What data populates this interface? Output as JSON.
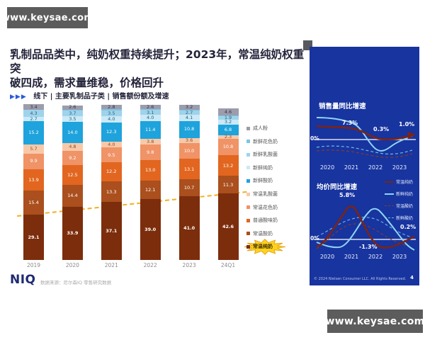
{
  "watermarks": {
    "top_left": "www.keysae.com",
    "bottom_right": "www.keysae.com"
  },
  "header": {
    "title_line1": "乳制品品类中，纯奶权重持续提升；2023年，常温纯奶权重突",
    "title_line2": "破四成，需求量维稳，价格回升",
    "kicker_arrows": "▶▶▶",
    "kicker_text": "线下 | 主要乳制品子类 | 销售额份额及增速"
  },
  "footer": {
    "logo": "NIQ",
    "source_note": "数据来源：尼尔森IQ 零售研究数据",
    "copyright": "© 2024 Nielsen Consumer LLC. All Rights Reserved.",
    "page_number": "4"
  },
  "chart_data": [
    {
      "type": "bar",
      "stacked": true,
      "unit": "%",
      "title": "线下 | 主要乳制品子类 | 销售额份额",
      "categories": [
        "2019",
        "2020",
        "2021",
        "2022",
        "2023",
        "24Q1"
      ],
      "series_bottom_to_top": [
        {
          "name": "常温纯奶",
          "color": "#7c2d0c",
          "text": "#ffffff",
          "bold": true,
          "values": [
            "29.1",
            "33.9",
            "37.1",
            "39.0",
            "41.0",
            "42.6"
          ]
        },
        {
          "name": "常温酸奶",
          "color": "#aa4f1d",
          "text": "#ffffff",
          "values": [
            "15.4",
            "14.4",
            "13.3",
            "12.1",
            "10.7",
            "11.3"
          ]
        },
        {
          "name": "普通酸味奶",
          "color": "#e2661f",
          "text": "#ffffff",
          "values": [
            "13.9",
            "12.5",
            "12.2",
            "13.0",
            "13.1",
            "13.2"
          ]
        },
        {
          "name": "常温花色奶",
          "color": "#f09366",
          "text": "#ffffff",
          "values": [
            "9.9",
            "9.2",
            "9.5",
            "9.8",
            "10.0",
            "10.8"
          ]
        },
        {
          "name": "常温乳酸菌",
          "color": "#f8c9a9",
          "text": "#8a4d22",
          "values": [
            "5.7",
            "4.8",
            "4.0",
            "3.8",
            "3.6",
            "2.3"
          ]
        },
        {
          "name": "新鲜酸奶",
          "color": "#1ea3dc",
          "text": "#ffffff",
          "values": [
            "15.2",
            "14.0",
            "12.3",
            "11.4",
            "10.8",
            "6.8"
          ]
        },
        {
          "name": "新鲜纯奶",
          "color": "#cbe9f6",
          "text": "#27607e",
          "values": [
            "2.7",
            "3.5",
            "4.0",
            "4.0",
            "4.1",
            "3.2"
          ]
        },
        {
          "name": "新鲜乳酸菌",
          "color": "#9ed3eb",
          "text": "#27607e",
          "values": [
            "4.3",
            "3.7",
            "3.5",
            "3.1",
            "2.7",
            "1.9"
          ]
        },
        {
          "name": "新鲜花色奶",
          "color": "#7cc4e4",
          "text": "#27607e",
          "hide_label": true,
          "values": [
            "0.4",
            "0.6",
            "0.8",
            "0.6",
            "0.5",
            "0.7"
          ]
        },
        {
          "name": "成人粉",
          "color": "#9c9cac",
          "text": "#34344a",
          "values": [
            "3.4",
            "2.6",
            "2.8",
            "2.6",
            "3.2",
            "4.6"
          ]
        }
      ],
      "highlight": {
        "series": "常温纯奶",
        "color": "#ffd21f"
      },
      "trend_line": {
        "color": "#f2b01e",
        "style": "dashed"
      }
    },
    {
      "type": "line",
      "title": "销售量同比增速",
      "x": [
        "2020",
        "2021",
        "2022",
        "2023"
      ],
      "zero_label": "0%",
      "series": [
        {
          "name": "常温纯奶",
          "style": "solid",
          "color": "#7b2416",
          "values": [
            8.5,
            7.3,
            0.3,
            1.0
          ]
        },
        {
          "name": "新鲜纯奶",
          "style": "solid",
          "color": "#8fd4f5",
          "values": [
            14,
            11,
            -6,
            0.8
          ]
        },
        {
          "name": "常温酸奶",
          "style": "dashed",
          "color": "#8b3a2a",
          "values": [
            -7,
            -7.5,
            -11,
            -9
          ]
        },
        {
          "name": "新鲜酸奶",
          "style": "dashed",
          "color": "#6fb9e8",
          "values": [
            -5,
            -5.5,
            -9,
            -7
          ]
        }
      ],
      "point_labels": [
        {
          "series": "常温纯奶",
          "x": "2021",
          "text": "7.3%"
        },
        {
          "series": "常温纯奶",
          "x": "2022",
          "text": "0.3%"
        },
        {
          "series": "常温纯奶",
          "x": "2023",
          "text": "1.0%"
        }
      ]
    },
    {
      "type": "line",
      "title": "均价同比增速",
      "x": [
        "2020",
        "2021",
        "2022",
        "2023"
      ],
      "zero_label": "0%",
      "legend": [
        "常温纯奶",
        "新鲜纯奶",
        "常温酸奶",
        "新鲜酸奶"
      ],
      "series": [
        {
          "name": "常温纯奶",
          "style": "solid",
          "color": "#7b2416",
          "values": [
            -1.4,
            5.8,
            -1.3,
            0.2
          ]
        },
        {
          "name": "新鲜纯奶",
          "style": "solid",
          "color": "#8fd4f5",
          "values": [
            -0.9,
            -1.5,
            4.6,
            -1.8
          ]
        },
        {
          "name": "常温酸奶",
          "style": "dashed",
          "color": "#8b3a2a",
          "values": [
            -1.6,
            2.4,
            0.9,
            -1.4
          ]
        },
        {
          "name": "新鲜酸奶",
          "style": "dashed",
          "color": "#6fb9e8",
          "values": [
            0.5,
            3.5,
            2.5,
            0.3
          ]
        }
      ],
      "point_labels": [
        {
          "series": "常温纯奶",
          "x": "2021",
          "text": "5.8%"
        },
        {
          "series": "常温纯奶",
          "x": "2022",
          "text": "-1.3%"
        },
        {
          "series": "常温纯奶",
          "x": "2023",
          "text": "0.2%"
        }
      ]
    }
  ]
}
